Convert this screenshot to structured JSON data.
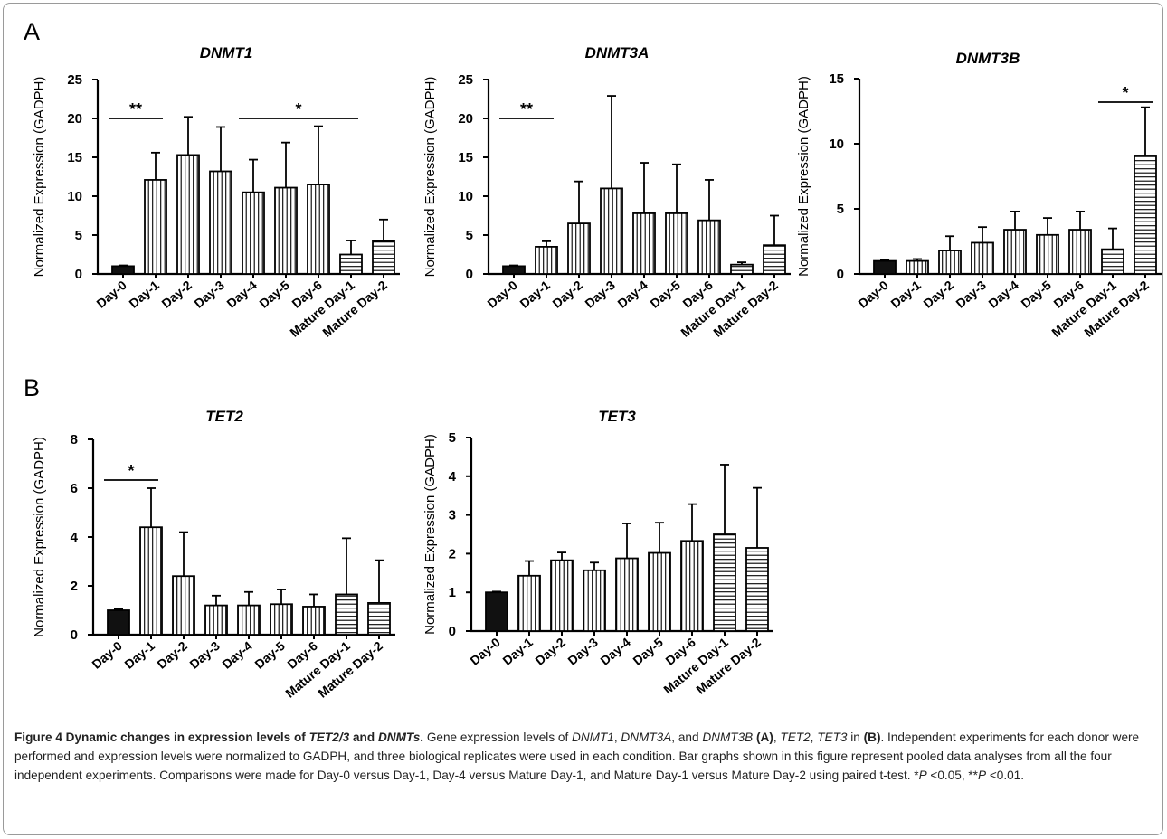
{
  "panels": [
    {
      "letter": "A"
    },
    {
      "letter": "B"
    }
  ],
  "categories": [
    "Day-0",
    "Day-1",
    "Day-2",
    "Day-3",
    "Day-4",
    "Day-5",
    "Day-6",
    "Mature Day-1",
    "Mature Day-2"
  ],
  "colors": {
    "day0_fill": "#111111",
    "stroke": "#000000",
    "pattern": "#000000"
  },
  "chart_data": [
    {
      "type": "bar",
      "panel": "A",
      "title": "DNMT1",
      "ylabel": "Normalized Expression (GADPH)",
      "categories": [
        "Day-0",
        "Day-1",
        "Day-2",
        "Day-3",
        "Day-4",
        "Day-5",
        "Day-6",
        "Mature Day-1",
        "Mature Day-2"
      ],
      "values": [
        1.0,
        12.1,
        15.3,
        13.2,
        10.5,
        11.1,
        11.5,
        2.5,
        4.2
      ],
      "errors": [
        0.1,
        3.5,
        4.9,
        5.7,
        4.2,
        5.8,
        7.5,
        1.8,
        2.8
      ],
      "ylim": [
        0,
        25
      ],
      "yticks": [
        0,
        5,
        10,
        15,
        20,
        25
      ],
      "significance": [
        {
          "from": 0,
          "to": 1,
          "label": "**"
        },
        {
          "from": 4,
          "to": 7,
          "label": "*"
        }
      ]
    },
    {
      "type": "bar",
      "panel": "A",
      "title": "DNMT3A",
      "ylabel": "Normalized Expression (GADPH)",
      "categories": [
        "Day-0",
        "Day-1",
        "Day-2",
        "Day-3",
        "Day-4",
        "Day-5",
        "Day-6",
        "Mature Day-1",
        "Mature Day-2"
      ],
      "values": [
        1.0,
        3.5,
        6.5,
        11.0,
        7.8,
        7.8,
        6.9,
        1.2,
        3.7
      ],
      "errors": [
        0.1,
        0.7,
        5.4,
        11.9,
        6.5,
        6.3,
        5.2,
        0.3,
        3.8
      ],
      "ylim": [
        0,
        25
      ],
      "yticks": [
        0,
        5,
        10,
        15,
        20,
        25
      ],
      "significance": [
        {
          "from": 0,
          "to": 1,
          "label": "**"
        }
      ]
    },
    {
      "type": "bar",
      "panel": "A",
      "title": "DNMT3B",
      "ylabel": "Normalized Expression (GADPH)",
      "categories": [
        "Day-0",
        "Day-1",
        "Day-2",
        "Day-3",
        "Day-4",
        "Day-5",
        "Day-6",
        "Mature Day-1",
        "Mature Day-2"
      ],
      "values": [
        1.0,
        1.0,
        1.8,
        2.4,
        3.4,
        3.0,
        3.4,
        1.9,
        9.1
      ],
      "errors": [
        0.05,
        0.15,
        1.1,
        1.2,
        1.4,
        1.3,
        1.4,
        1.6,
        3.7
      ],
      "ylim": [
        0,
        15
      ],
      "yticks": [
        0,
        5,
        10,
        15
      ],
      "significance": [
        {
          "from": 7,
          "to": 8,
          "label": "*"
        }
      ]
    },
    {
      "type": "bar",
      "panel": "B",
      "title": "TET2",
      "ylabel": "Normalized Expression (GADPH)",
      "categories": [
        "Day-0",
        "Day-1",
        "Day-2",
        "Day-3",
        "Day-4",
        "Day-5",
        "Day-6",
        "Mature Day-1",
        "Mature Day-2"
      ],
      "values": [
        1.0,
        4.4,
        2.4,
        1.2,
        1.2,
        1.25,
        1.15,
        1.65,
        1.3
      ],
      "errors": [
        0.05,
        1.6,
        1.8,
        0.4,
        0.55,
        0.6,
        0.5,
        2.3,
        1.75
      ],
      "ylim": [
        0,
        8
      ],
      "yticks": [
        0,
        2,
        4,
        6,
        8
      ],
      "significance": [
        {
          "from": 0,
          "to": 1,
          "label": "*"
        }
      ]
    },
    {
      "type": "bar",
      "panel": "B",
      "title": "TET3",
      "ylabel": "Normalized Expression (GADPH)",
      "categories": [
        "Day-0",
        "Day-1",
        "Day-2",
        "Day-3",
        "Day-4",
        "Day-5",
        "Day-6",
        "Mature Day-1",
        "Mature Day-2"
      ],
      "values": [
        1.0,
        1.43,
        1.83,
        1.57,
        1.88,
        2.02,
        2.33,
        2.5,
        2.15
      ],
      "errors": [
        0.02,
        0.38,
        0.2,
        0.2,
        0.9,
        0.78,
        0.95,
        1.8,
        1.55
      ],
      "ylim": [
        0,
        5
      ],
      "yticks": [
        0,
        1,
        2,
        3,
        4,
        5
      ],
      "significance": []
    }
  ],
  "caption": {
    "heading": "Figure 4 Dynamic changes in expression levels of ",
    "heading_gene1": "TET2/3",
    "heading_and": " and ",
    "heading_gene2": "DNMTs",
    "heading_end": ".",
    "t1": " Gene expression levels of ",
    "g1": "DNMT1",
    "t2": ", ",
    "g2": "DNMT3A",
    "t3": ", and ",
    "g3": "DNMT3B",
    "t4": " ",
    "b1": "(A)",
    "t5": ", ",
    "g4": "TET2",
    "t6": ", ",
    "g5": "TET3",
    "t7": " in ",
    "b2": "(B)",
    "t8": ". Independent experiments for each donor were performed and expression levels were normalized to GADPH, and three biological replicates were used in each condition. Bar graphs shown in this figure represent pooled data analyses from all the four independent experiments. Comparisons were made for Day-0 versus Day-1, Day-4 versus Mature Day-1, and Mature Day-1 versus Mature Day-2 using paired t-test. *",
    "p1": "P",
    "t9": " <0.05, **",
    "p2": "P",
    "t10": " <0.01."
  }
}
